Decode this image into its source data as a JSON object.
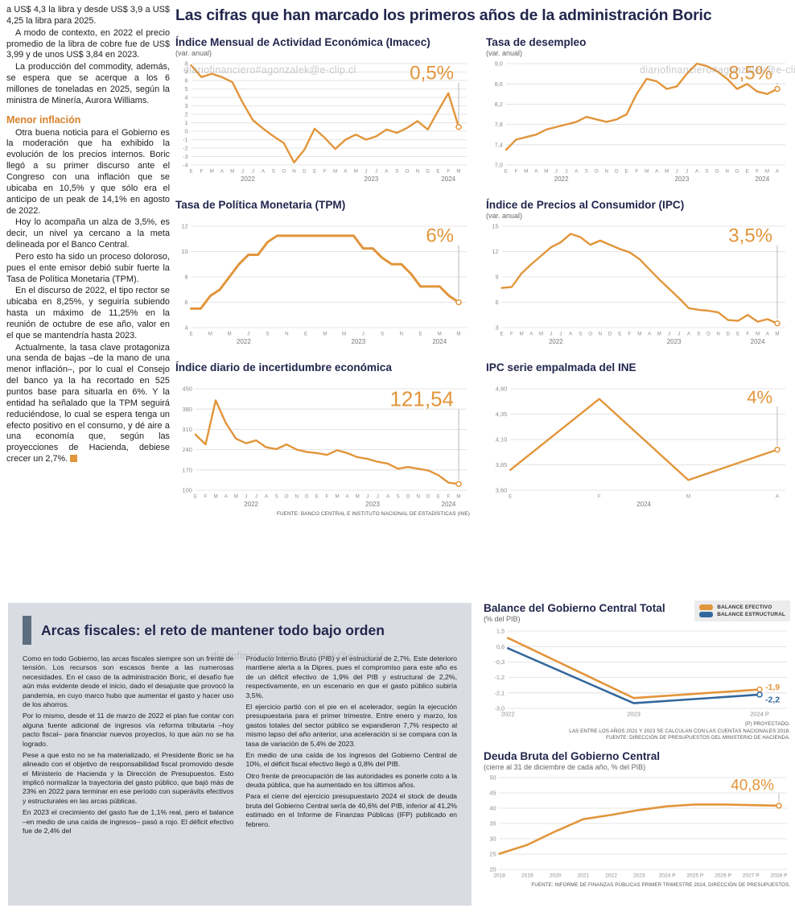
{
  "colors": {
    "accent_orange": "#E2953B",
    "accent_blue": "#33689C",
    "navy": "#23264D",
    "gray_box": "#D9DDE3"
  },
  "watermark": "diariofinanciero#agonzalek@e-clip.cl",
  "article": {
    "intro": [
      "a US$ 4,3 la libra y desde US$ 3,9 a US$ 4,25 la libra para 2025.",
      "A modo de contexto, en 2022 el precio promedio de la libra de cobre fue de US$ 3,99 y de unos US$ 3,84 en 2023.",
      "La producción del commodity, además, se espera que se acerque a los 6 millones de toneladas en 2025, según la ministra de Minería, Aurora Williams."
    ],
    "subhead": "Menor inflación",
    "body": [
      "Otra buena noticia para el Gobierno es la moderación que ha exhibido la evolución de los precios internos. Boric llegó a su primer discurso ante el Congreso con una inflación que se ubicaba en 10,5% y que sólo era el anticipo de un peak de 14,1% en agosto de 2022.",
      "Hoy lo acompaña un alza de 3,5%, es decir, un nivel ya cercano a la meta delineada por el Banco Central.",
      "Pero esto ha sido un proceso doloroso, pues el ente emisor debió subir fuerte la Tasa de Política Monetaria (TPM).",
      "En el discurso de 2022, el tipo rector se ubicaba en 8,25%, y seguiría subiendo hasta un máximo de 11,25% en la reunión de octubre de ese año, valor en el que se mantendría hasta 2023."
    ],
    "last_paragraph": "Actualmente, la tasa clave protagoniza una senda de bajas –de la mano de una menor inflación–, por lo cual el Consejo del banco ya la ha recortado en 525 puntos base para situarla en 6%. Y la entidad ha señalado que la TPM seguirá reduciéndose, lo cual se espera tenga un efecto positivo en el consumo, y dé aire a una economía que, según las proyecciones de Hacienda, debiese crecer un 2,7%."
  },
  "main_title": "Las cifras que han marcado los primeros años de la administración Boric",
  "sources": {
    "central_bank": "FUENTE: BANCO CENTRAL E INSTITUTO NACIONAL DE ESTADÍSTICAS (INE)",
    "balance_note1": "(P) PROYECTADO.",
    "balance_note2": "LAS ENTRE LOS AÑOS 2021 Y 2023 SE CALCULAN  CON LAS CUENTAS NACIONALES 2018.",
    "balance_note3": "FUENTE: DIRECCIÓN DE PRESUPUESTOS DEL MINISTERIO DE HACIENDA.",
    "deuda": "FUENTE: INFORME DE FINANZAS PÚBLICAS PRIMER TRIMESTRE 2024, DIRECCIÓN DE PRESUPUESTOS."
  },
  "fiscal_box": {
    "title": "Arcas fiscales: el reto de mantener todo bajo orden",
    "col1": [
      "Como en todo Gobierno, las arcas fiscales siempre son un frente de tensión. Los recursos son escasos frente a las numerosas necesidades. En el caso de la administración Boric, el desafío fue aún más evidente desde el inicio, dado el desajuste que provocó la pandemia, en cuyo marco hubo que aumentar el gasto y hacer uso de los ahorros.",
      "Por lo mismo, desde el 11 de marzo de 2022 el plan fue contar con alguna fuente adicional de ingresos vía reforma tributaria –hoy pacto fiscal– para financiar nuevos proyectos, lo que aún no se ha logrado.",
      "Pese a que esto no se ha materializado, el Presidente Boric se ha alineado con el objetivo de responsabilidad fiscal promovido desde el Ministerio de Hacienda y la Dirección de Presupuestos. Esto implicó normalizar la trayectoria del gasto público, que bajó más de 23% en 2022 para terminar en ese período con superávits efectivos y estructurales en las arcas públicas.",
      "En 2023 el crecimiento del gasto fue de 1,1% real, pero el balance –en medio de una caída de ingresos– pasó a rojo. El déficit efectivo fue de 2,4% del"
    ],
    "col2": [
      "Producto Interno Bruto (PIB) y el estructural de 2,7%. Este deterioro mantiene alerta a la Dipres, pues el compromiso para este año es de un déficit efectivo de 1,9% del PIB y estructural de 2,2%, respectivamente, en un escenario en que el gasto público subiría 3,5%.",
      "El ejercicio partió con el pie en el acelerador, según la ejecución presupuestaria para el primer trimestre. Entre enero y marzo, los gastos totales del sector público se expandieron 7,7% respecto al mismo lapso del año anterior, una aceleración si se compara con la tasa de variación de 5,4% de 2023.",
      "En medio de una caída de los ingresos del Gobierno Central de 10%, el déficit fiscal efectivo llegó a 0,8% del PIB.",
      "Otro frente de preocupación de las autoridades es ponerle coto a la deuda pública, que ha aumentado en los últimos años.",
      "Para el cierre del ejercicio presupuestario 2024 el stock de deuda bruta del Gobierno Central sería de 40,6% del PIB, inferior al 41,2% estimado en el Informe de Finanzas Públicas (IFP) publicado en febrero."
    ]
  },
  "chart_data": [
    {
      "id": "imacec",
      "type": "line",
      "title": "Índice Mensual de Actividad Económica (Imacec)",
      "subtitle": "(var. anual)",
      "highlight": "0,5%",
      "highlight_size": 24,
      "ylim": [
        -4,
        8
      ],
      "ytick_values": [
        -4,
        -3,
        -2,
        -1,
        0,
        1,
        2,
        3,
        4,
        5,
        6,
        7,
        8
      ],
      "ytick_labels": [
        "-4",
        "-3",
        "-2",
        "-1",
        "0",
        "1",
        "2",
        "3",
        "4",
        "5",
        "6",
        "7",
        "8"
      ],
      "x_labels": [
        "E",
        "F",
        "M",
        "A",
        "M",
        "J",
        "J",
        "A",
        "S",
        "O",
        "N",
        "D",
        "E",
        "F",
        "M",
        "A",
        "M",
        "J",
        "J",
        "A",
        "S",
        "O",
        "N",
        "D",
        "E",
        "F",
        "M"
      ],
      "year_spans": [
        {
          "label": "2022",
          "from": 0,
          "to": 11
        },
        {
          "label": "2023",
          "from": 12,
          "to": 23
        },
        {
          "label": "2024",
          "from": 24,
          "to": 26
        }
      ],
      "series": [
        {
          "name": "Imacec",
          "color": "#E2953B",
          "width": 2.4,
          "values": [
            7.8,
            6.4,
            6.8,
            6.4,
            5.8,
            3.4,
            1.3,
            0.3,
            -0.6,
            -1.4,
            -3.7,
            -2.2,
            0.3,
            -0.8,
            -2.1,
            -1.0,
            -0.4,
            -1.0,
            -0.6,
            0.2,
            -0.2,
            0.4,
            1.2,
            0.2,
            2.4,
            4.5,
            0.5
          ]
        }
      ]
    },
    {
      "id": "desempleo",
      "type": "line",
      "title": "Tasa de desempleo",
      "subtitle": "(var. anual)",
      "highlight": "8,5%",
      "highlight_size": 24,
      "ylim": [
        7.0,
        9.0
      ],
      "ytick_values": [
        7.0,
        7.4,
        7.8,
        8.2,
        8.6,
        9.0
      ],
      "ytick_labels": [
        "7,0",
        "7,4",
        "7,8",
        "8,2",
        "8,6",
        "9,0"
      ],
      "x_labels": [
        "E",
        "F",
        "M",
        "A",
        "M",
        "J",
        "J",
        "A",
        "S",
        "O",
        "N",
        "D",
        "E",
        "F",
        "M",
        "A",
        "M",
        "J",
        "J",
        "A",
        "S",
        "O",
        "N",
        "D",
        "E",
        "F",
        "M",
        "A"
      ],
      "year_spans": [
        {
          "label": "2022",
          "from": 0,
          "to": 11
        },
        {
          "label": "2023",
          "from": 12,
          "to": 23
        },
        {
          "label": "2024",
          "from": 24,
          "to": 27
        }
      ],
      "series": [
        {
          "name": "Desempleo",
          "color": "#E2953B",
          "width": 2.4,
          "values": [
            7.3,
            7.5,
            7.55,
            7.6,
            7.7,
            7.75,
            7.8,
            7.85,
            7.95,
            7.9,
            7.85,
            7.9,
            8.0,
            8.4,
            8.7,
            8.65,
            8.5,
            8.55,
            8.8,
            9.0,
            8.95,
            8.85,
            8.7,
            8.5,
            8.6,
            8.45,
            8.4,
            8.5
          ]
        }
      ]
    },
    {
      "id": "tpm",
      "type": "line",
      "title": "Tasa de Política Monetaria (TPM)",
      "subtitle": "",
      "highlight": "6%",
      "highlight_size": 24,
      "ylim": [
        4,
        12
      ],
      "ytick_values": [
        4,
        6,
        8,
        10,
        12
      ],
      "ytick_labels": [
        "4",
        "6",
        "8",
        "10",
        "12"
      ],
      "x_labels": [
        "E",
        "",
        "M",
        "",
        "M",
        "",
        "J",
        "",
        "S",
        "",
        "N",
        "",
        "E",
        "",
        "M",
        "",
        "M",
        "",
        "J",
        "",
        "S",
        "",
        "N",
        "",
        "E",
        "",
        "M",
        "",
        "M"
      ],
      "year_spans": [
        {
          "label": "2022",
          "from": 0,
          "to": 11
        },
        {
          "label": "2023",
          "from": 12,
          "to": 23
        },
        {
          "label": "2024",
          "from": 24,
          "to": 28
        }
      ],
      "series": [
        {
          "name": "TPM",
          "color": "#E2953B",
          "width": 3,
          "values": [
            5.5,
            5.5,
            6.5,
            7.0,
            8.0,
            9.0,
            9.75,
            9.75,
            10.75,
            11.25,
            11.25,
            11.25,
            11.25,
            11.25,
            11.25,
            11.25,
            11.25,
            11.25,
            10.25,
            10.25,
            9.5,
            9.0,
            9.0,
            8.25,
            7.25,
            7.25,
            7.25,
            6.5,
            6.0
          ]
        }
      ]
    },
    {
      "id": "ipc",
      "type": "line",
      "title": "Índice de Precios al Consumidor (IPC)",
      "subtitle": "(var. anual)",
      "highlight": "3,5%",
      "highlight_size": 24,
      "ylim": [
        3,
        15
      ],
      "ytick_values": [
        3,
        6,
        9,
        12,
        15
      ],
      "ytick_labels": [
        "3",
        "6",
        "9",
        "12",
        "15"
      ],
      "x_labels": [
        "E",
        "F",
        "M",
        "A",
        "M",
        "J",
        "J",
        "A",
        "S",
        "O",
        "N",
        "D",
        "E",
        "F",
        "M",
        "A",
        "M",
        "J",
        "J",
        "A",
        "S",
        "O",
        "N",
        "D",
        "E",
        "F",
        "M",
        "A",
        "M"
      ],
      "year_spans": [
        {
          "label": "2022",
          "from": 0,
          "to": 11
        },
        {
          "label": "2023",
          "from": 12,
          "to": 23
        },
        {
          "label": "2024",
          "from": 24,
          "to": 28
        }
      ],
      "series": [
        {
          "name": "IPC",
          "color": "#E2953B",
          "width": 2.4,
          "values": [
            7.7,
            7.8,
            9.4,
            10.5,
            11.5,
            12.5,
            13.1,
            14.1,
            13.7,
            12.8,
            13.3,
            12.8,
            12.3,
            11.9,
            11.1,
            9.9,
            8.7,
            7.6,
            6.5,
            5.3,
            5.1,
            5.0,
            4.8,
            3.9,
            3.8,
            4.5,
            3.7,
            4.0,
            3.5
          ]
        }
      ]
    },
    {
      "id": "incertidumbre",
      "type": "line",
      "title": "Índice diario de incertidumbre económica",
      "subtitle": "",
      "highlight": "121,54",
      "highlight_size": 26,
      "ylim": [
        100,
        450
      ],
      "ytick_values": [
        100,
        170,
        240,
        310,
        380,
        450
      ],
      "ytick_labels": [
        "100",
        "170",
        "240",
        "310",
        "380",
        "450"
      ],
      "x_labels": [
        "E",
        "F",
        "M",
        "A",
        "M",
        "J",
        "J",
        "A",
        "S",
        "O",
        "N",
        "D",
        "E",
        "F",
        "M",
        "A",
        "M",
        "J",
        "J",
        "A",
        "S",
        "O",
        "N",
        "D",
        "E",
        "F",
        "M"
      ],
      "year_spans": [
        {
          "label": "2022",
          "from": 0,
          "to": 11
        },
        {
          "label": "2023",
          "from": 12,
          "to": 23
        },
        {
          "label": "2024",
          "from": 24,
          "to": 26
        }
      ],
      "series": [
        {
          "name": "Incertidumbre",
          "color": "#E2953B",
          "width": 2.4,
          "values": [
            292,
            258,
            410,
            332,
            278,
            262,
            272,
            248,
            242,
            258,
            240,
            232,
            228,
            222,
            238,
            228,
            214,
            208,
            198,
            192,
            174,
            180,
            174,
            168,
            152,
            126,
            121.54
          ]
        }
      ]
    },
    {
      "id": "ipc-ine",
      "type": "line",
      "title": "IPC serie empalmada del INE",
      "subtitle": "",
      "highlight": "4%",
      "highlight_size": 22,
      "ylim": [
        3.6,
        4.6
      ],
      "ytick_values": [
        3.6,
        3.85,
        4.1,
        4.35,
        4.6
      ],
      "ytick_labels": [
        "3,60",
        "3,85",
        "4,10",
        "4,35",
        "4,60"
      ],
      "x_labels": [
        "E",
        "F",
        "M",
        "A"
      ],
      "year_spans": [
        {
          "label": "2024",
          "from": 0,
          "to": 3
        }
      ],
      "series": [
        {
          "name": "IPC INE",
          "color": "#E2953B",
          "width": 2.4,
          "values": [
            3.8,
            4.5,
            3.7,
            4.0
          ]
        }
      ]
    },
    {
      "id": "balance",
      "type": "line",
      "title": "Balance del Gobierno Central Total",
      "subtitle": "(% del PIB)",
      "right_margin": 38,
      "x_label_size": 7.5,
      "ylim": [
        -3.0,
        1.5
      ],
      "ytick_values": [
        1.5,
        0.6,
        -0.3,
        -1.2,
        -2.1,
        -3.0
      ],
      "ytick_labels": [
        "1,5",
        "0,6",
        "-0,3",
        "-1,2",
        "-2,1",
        "-3,0"
      ],
      "x_labels": [
        "2022",
        "2023",
        "2024 P"
      ],
      "legend": [
        {
          "label": "BALANCE EFECTIVO",
          "color": "#E2953B"
        },
        {
          "label": "BALANCE ESTRUCTURAL",
          "color": "#33689C"
        }
      ],
      "series": [
        {
          "name": "Balance efectivo",
          "color": "#E2953B",
          "width": 2.6,
          "end_label": "-1,9",
          "label_dy": -3,
          "values": [
            1.1,
            -2.4,
            -1.9
          ]
        },
        {
          "name": "Balance estructural",
          "color": "#33689C",
          "width": 2.6,
          "end_label": "-2,2",
          "label_dy": 6,
          "values": [
            0.5,
            -2.7,
            -2.2
          ]
        }
      ]
    },
    {
      "id": "deuda",
      "type": "line",
      "title": "Deuda Bruta del Gobierno Central",
      "subtitle": "(cierre al 31 de diciembre de cada año, % del PIB)",
      "highlight": "40,8%",
      "highlight_size": 19,
      "x_label_size": 6.6,
      "ylim": [
        20,
        50
      ],
      "ytick_values": [
        20,
        25,
        30,
        35,
        40,
        45,
        50
      ],
      "ytick_labels": [
        "20",
        "25",
        "30",
        "35",
        "40",
        "45",
        "50"
      ],
      "x_labels": [
        "2018",
        "2019",
        "2020",
        "2021",
        "2022",
        "2023",
        "2024 P",
        "2025 P",
        "2026 P",
        "2027 P",
        "2028 P"
      ],
      "series": [
        {
          "name": "Deuda bruta",
          "color": "#E2953B",
          "width": 2.6,
          "values": [
            25.1,
            28.0,
            32.4,
            36.4,
            37.8,
            39.4,
            40.6,
            41.2,
            41.2,
            41.0,
            40.8
          ]
        }
      ]
    }
  ]
}
